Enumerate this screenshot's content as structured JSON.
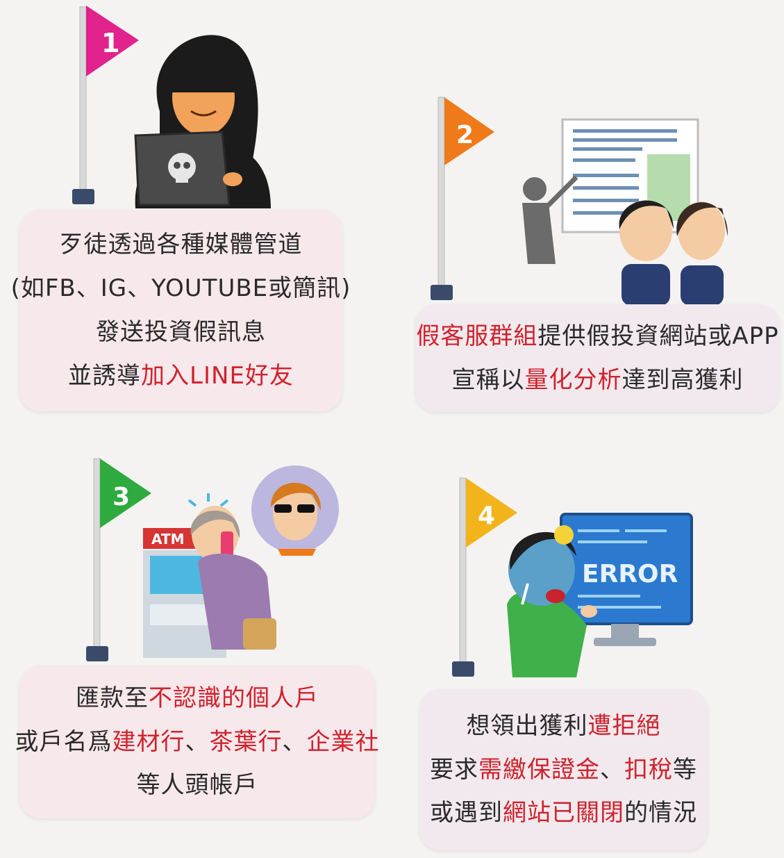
{
  "steps": [
    {
      "number": "1",
      "flag_color": "#e2238d",
      "illustration": "hooded-hacker-laptop",
      "lines": [
        [
          {
            "t": "歹徒透過各種媒體管道",
            "hl": false
          }
        ],
        [
          {
            "t": "(如FB、IG、YOUTUBE或簡訊)",
            "hl": false
          }
        ],
        [
          {
            "t": "發送投資假訊息",
            "hl": false
          }
        ],
        [
          {
            "t": "並誘導",
            "hl": false
          },
          {
            "t": "加入LINE好友",
            "hl": true
          }
        ]
      ]
    },
    {
      "number": "2",
      "flag_color": "#ef7a1a",
      "illustration": "presenter-whiteboard-audience",
      "lines": [
        [
          {
            "t": "假客服群組",
            "hl": true
          },
          {
            "t": "提供假投資網站或APP",
            "hl": false
          }
        ],
        [
          {
            "t": "宣稱以",
            "hl": false
          },
          {
            "t": "量化分析",
            "hl": true
          },
          {
            "t": "達到高獲利",
            "hl": false
          }
        ]
      ]
    },
    {
      "number": "3",
      "flag_color": "#2eaa3e",
      "illustration": "elderly-woman-atm-phone-call",
      "atm_label": "ATM",
      "lines": [
        [
          {
            "t": "匯款至",
            "hl": false
          },
          {
            "t": "不認識的個人戶",
            "hl": true
          }
        ],
        [
          {
            "t": "或戶名爲",
            "hl": false
          },
          {
            "t": "建材行",
            "hl": true
          },
          {
            "t": "、",
            "hl": false
          },
          {
            "t": "茶葉行",
            "hl": true
          },
          {
            "t": "、",
            "hl": false
          },
          {
            "t": "企業社",
            "hl": true
          }
        ],
        [
          {
            "t": "等人頭帳戶",
            "hl": false
          }
        ]
      ]
    },
    {
      "number": "4",
      "flag_color": "#f2b41a",
      "illustration": "crying-man-error-screen",
      "screen_text": "ERROR",
      "lines": [
        [
          {
            "t": "想領出獲利",
            "hl": false
          },
          {
            "t": "遭拒絕",
            "hl": true
          }
        ],
        [
          {
            "t": "要求",
            "hl": false
          },
          {
            "t": "需繳保證金",
            "hl": true
          },
          {
            "t": "、",
            "hl": false
          },
          {
            "t": "扣稅",
            "hl": true
          },
          {
            "t": "等",
            "hl": false
          }
        ],
        [
          {
            "t": "或遇到",
            "hl": false
          },
          {
            "t": "網站已關閉",
            "hl": true
          },
          {
            "t": "的情況",
            "hl": false
          }
        ]
      ]
    }
  ]
}
